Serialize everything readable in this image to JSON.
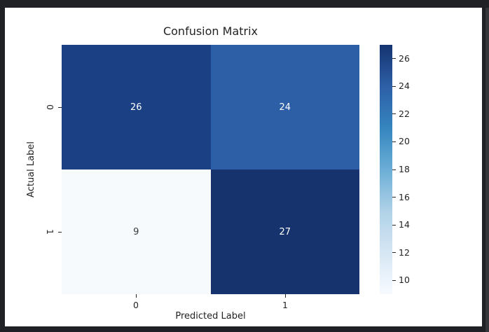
{
  "window": {
    "background": "#1f2124",
    "figure_background": "#ffffff",
    "scrollbar_color": "#34363a"
  },
  "chart_data": {
    "type": "heatmap",
    "title": "Confusion Matrix",
    "xlabel": "Predicted Label",
    "ylabel": "Actual Label",
    "x_tick_labels": [
      "0",
      "1"
    ],
    "y_tick_labels": [
      "0",
      "1"
    ],
    "matrix": [
      [
        26,
        24
      ],
      [
        9,
        27
      ]
    ],
    "vmin": 9,
    "vmax": 27,
    "colormap": "Blues",
    "axis_text_color": "#232323",
    "cells": [
      {
        "row": 0,
        "col": 0,
        "value": "26",
        "color": "#1b4083",
        "text_color": "#ffffff"
      },
      {
        "row": 0,
        "col": 1,
        "value": "24",
        "color": "#2d5fa7",
        "text_color": "#ffffff"
      },
      {
        "row": 1,
        "col": 0,
        "value": "9",
        "color": "#f7fafd",
        "text_color": "#36393e"
      },
      {
        "row": 1,
        "col": 1,
        "value": "27",
        "color": "#16336e",
        "text_color": "#ffffff"
      }
    ],
    "colorbar": {
      "ticks": [
        26,
        24,
        22,
        20,
        18,
        16,
        14,
        12,
        10
      ],
      "gradient_top_to_bottom": [
        "#15336f",
        "#2d5fa7",
        "#3585bf",
        "#6baed6",
        "#b0d2e7",
        "#d6e6f4",
        "#f7fbff"
      ]
    }
  }
}
